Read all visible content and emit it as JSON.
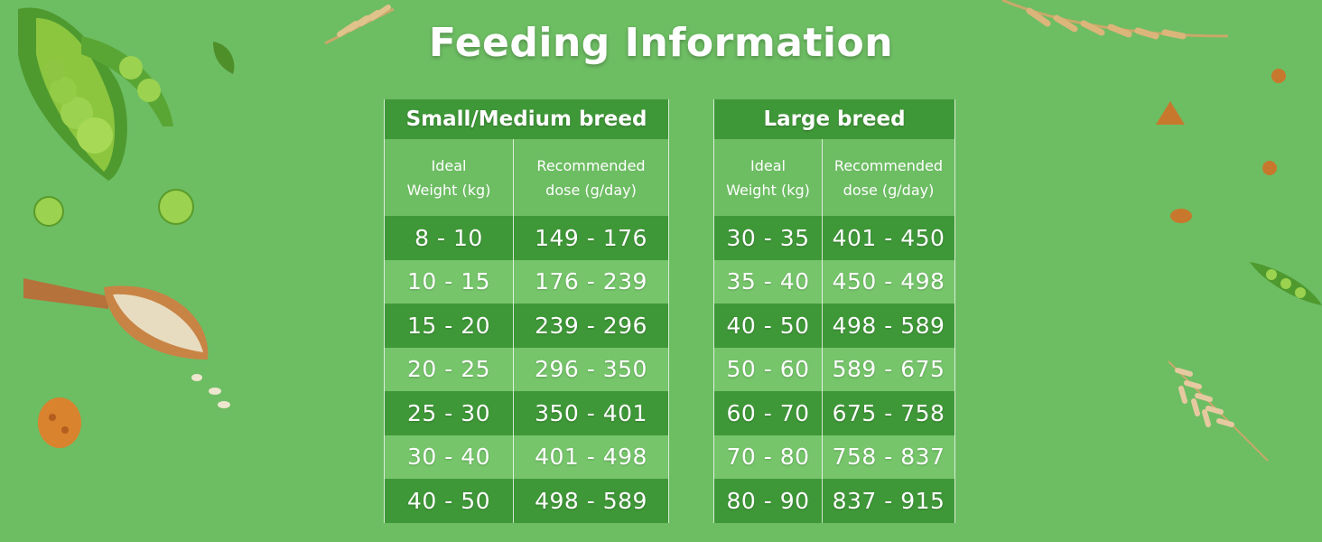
{
  "title": "Feeding Information",
  "tables": [
    {
      "heading": "Small/Medium breed",
      "col1_lines": [
        "Ideal",
        "Weight (kg)"
      ],
      "col2_lines": [
        "Recommended",
        "dose (g/day)"
      ],
      "rows": [
        {
          "weight": "8 - 10",
          "dose": "149 - 176"
        },
        {
          "weight": "10 - 15",
          "dose": "176 - 239"
        },
        {
          "weight": "15 - 20",
          "dose": "239 - 296"
        },
        {
          "weight": "20 - 25",
          "dose": "296 - 350"
        },
        {
          "weight": "25 - 30",
          "dose": "350 - 401"
        },
        {
          "weight": "30 - 40",
          "dose": "401 - 498"
        },
        {
          "weight": "40 - 50",
          "dose": "498 - 589"
        }
      ]
    },
    {
      "heading": "Large breed",
      "col1_lines": [
        "Ideal",
        "Weight (kg)"
      ],
      "col2_lines": [
        "Recommended",
        "dose (g/day)"
      ],
      "rows": [
        {
          "weight": "30 - 35",
          "dose": "401 - 450"
        },
        {
          "weight": "35 - 40",
          "dose": "450 - 498"
        },
        {
          "weight": "40 - 50",
          "dose": "498 - 589"
        },
        {
          "weight": "50 - 60",
          "dose": "589 - 675"
        },
        {
          "weight": "60 - 70",
          "dose": "675 - 758"
        },
        {
          "weight": "70 - 80",
          "dose": "758 - 837"
        },
        {
          "weight": "80 - 90",
          "dose": "837 - 915"
        }
      ]
    }
  ],
  "colors": {
    "background": "#6dbd63",
    "dark_row": "#3f9838",
    "light_row": "#76c56b",
    "text": "#ffffff"
  }
}
